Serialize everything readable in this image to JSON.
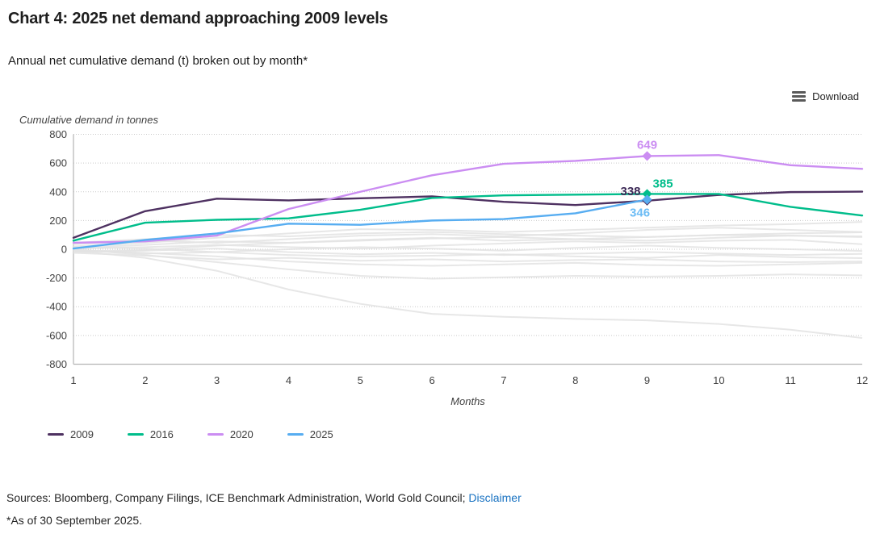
{
  "header": {
    "title": "Chart 4: 2025 net demand approaching 2009 levels",
    "subtitle": "Annual net cumulative demand (t) broken out by month*"
  },
  "toolbar": {
    "download_label": "Download"
  },
  "chart_data": {
    "type": "line",
    "title": "Chart 4: 2025 net demand approaching 2009 levels",
    "subtitle": "Annual net cumulative demand (t) broken out by month*",
    "ylabel": "Cumulative demand in tonnes",
    "xlabel": "Months",
    "x": [
      1,
      2,
      3,
      4,
      5,
      6,
      7,
      8,
      9,
      10,
      11,
      12
    ],
    "ylim": [
      -800,
      800
    ],
    "yticks": [
      800,
      600,
      400,
      200,
      0,
      -200,
      -400,
      -600,
      -800
    ],
    "grid": "horizontal-dotted",
    "legend_position": "bottom-left",
    "series": [
      {
        "name": "2009",
        "color": "#4e3161",
        "values": [
          80,
          265,
          352,
          340,
          355,
          368,
          330,
          308,
          338,
          378,
          398,
          401
        ],
        "marker": {
          "month": 9,
          "value": 338,
          "label": "338",
          "label_color": "#3d2a57",
          "position": "left"
        }
      },
      {
        "name": "2016",
        "color": "#00bd8b",
        "values": [
          60,
          185,
          205,
          215,
          275,
          357,
          375,
          380,
          385,
          385,
          295,
          235
        ],
        "marker": {
          "month": 9,
          "value": 385,
          "label": "385",
          "label_color": "#00bd8b",
          "position": "right-above"
        }
      },
      {
        "name": "2020",
        "color": "#cb8df2",
        "values": [
          45,
          55,
          95,
          280,
          400,
          515,
          595,
          615,
          649,
          655,
          585,
          560
        ],
        "marker": {
          "month": 9,
          "value": 649,
          "label": "649",
          "label_color": "#cb8df2",
          "position": "above"
        }
      },
      {
        "name": "2025",
        "color": "#57adf1",
        "values": [
          5,
          65,
          110,
          178,
          170,
          200,
          210,
          250,
          346
        ],
        "marker": {
          "month": 9,
          "value": 346,
          "label": "346",
          "label_color": "#6cbcf5",
          "position": "below"
        }
      }
    ],
    "background_series": {
      "color": "#e3e3e3",
      "lines": [
        [
          20,
          45,
          80,
          110,
          140,
          135,
          120,
          135,
          150,
          165,
          175,
          190
        ],
        [
          35,
          60,
          45,
          70,
          95,
          105,
          90,
          110,
          135,
          150,
          135,
          120
        ],
        [
          -15,
          -5,
          25,
          45,
          60,
          75,
          85,
          70,
          60,
          80,
          95,
          85
        ],
        [
          -10,
          -60,
          -150,
          -280,
          -380,
          -450,
          -470,
          -485,
          -495,
          -520,
          -560,
          -618
        ],
        [
          0,
          -40,
          -90,
          -140,
          -185,
          -205,
          -195,
          -185,
          -190,
          -185,
          -175,
          -182
        ],
        [
          -25,
          -45,
          -70,
          -60,
          -80,
          -70,
          -85,
          -75,
          -70,
          -85,
          -90,
          -85
        ],
        [
          10,
          30,
          55,
          45,
          65,
          80,
          60,
          70,
          85,
          100,
          110,
          118
        ],
        [
          5,
          15,
          30,
          15,
          5,
          25,
          40,
          55,
          45,
          60,
          65,
          35
        ],
        [
          -5,
          -30,
          -20,
          0,
          15,
          5,
          -10,
          10,
          25,
          10,
          0,
          -12
        ],
        [
          15,
          5,
          -20,
          -40,
          -50,
          -45,
          -35,
          -50,
          -60,
          -40,
          -55,
          -62
        ],
        [
          45,
          70,
          100,
          90,
          110,
          120,
          105,
          95,
          85,
          100,
          95,
          90
        ],
        [
          -20,
          -10,
          5,
          -20,
          -35,
          -25,
          -40,
          -30,
          -20,
          -30,
          -40,
          -32
        ],
        [
          -5,
          -25,
          -50,
          -85,
          -105,
          -115,
          -105,
          -95,
          -110,
          -115,
          -105,
          -95
        ]
      ]
    }
  },
  "legend": {
    "items": [
      {
        "label": "2009",
        "color": "#4e3161"
      },
      {
        "label": "2016",
        "color": "#00bd8b"
      },
      {
        "label": "2020",
        "color": "#cb8df2"
      },
      {
        "label": "2025",
        "color": "#57adf1"
      }
    ]
  },
  "footer": {
    "sources_text": "Sources: Bloomberg, Company Filings, ICE Benchmark Administration, World Gold Council;",
    "disclaimer_label": "Disclaimer",
    "footnote": "*As of 30 September 2025."
  }
}
